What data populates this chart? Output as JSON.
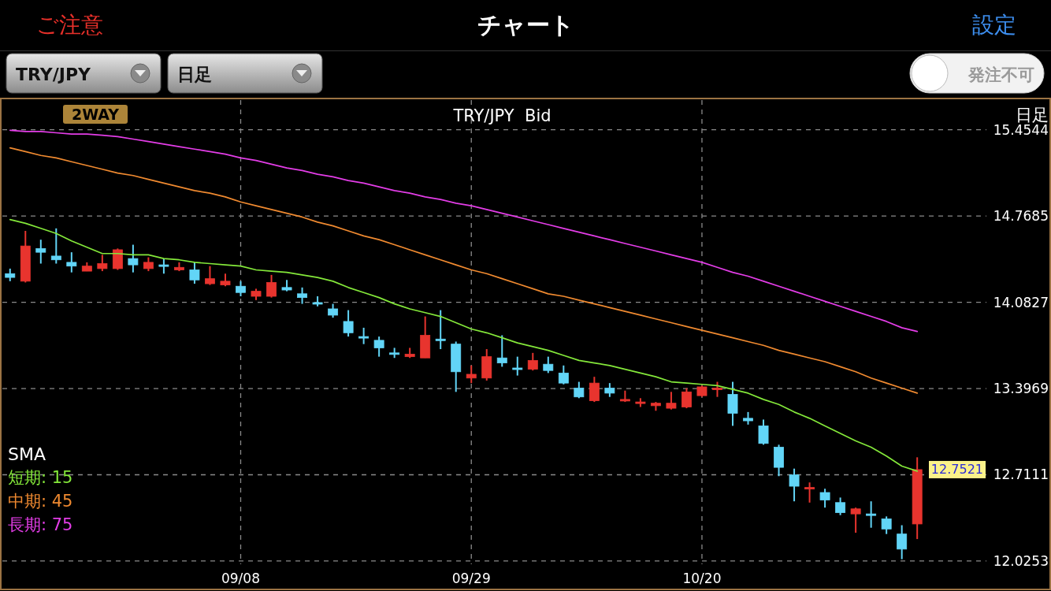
{
  "chart_data": {
    "type": "candlestick",
    "title": "TRY/JPY  Bid",
    "legend_title": "SMA",
    "categories": [
      null,
      null,
      null,
      null,
      null,
      null,
      null,
      null,
      null,
      null,
      null,
      null,
      null,
      null,
      null,
      "09/08",
      null,
      null,
      null,
      null,
      null,
      null,
      null,
      null,
      null,
      null,
      null,
      null,
      null,
      null,
      "09/29",
      null,
      null,
      null,
      null,
      null,
      null,
      null,
      null,
      null,
      null,
      null,
      null,
      null,
      null,
      "10/20",
      null,
      null,
      null,
      null,
      null,
      null,
      null,
      null,
      null,
      null,
      null,
      null,
      null,
      null
    ],
    "ohlc": [
      [
        14.31,
        14.35,
        14.25,
        14.28
      ],
      [
        14.25,
        14.65,
        14.24,
        14.53
      ],
      [
        14.51,
        14.58,
        14.39,
        14.48
      ],
      [
        14.45,
        14.67,
        14.39,
        14.42
      ],
      [
        14.4,
        14.48,
        14.32,
        14.37
      ],
      [
        14.33,
        14.4,
        14.33,
        14.37
      ],
      [
        14.35,
        14.46,
        14.33,
        14.39
      ],
      [
        14.35,
        14.51,
        14.34,
        14.5
      ],
      [
        14.43,
        14.54,
        14.32,
        14.38
      ],
      [
        14.35,
        14.44,
        14.33,
        14.4
      ],
      [
        14.38,
        14.43,
        14.31,
        14.37
      ],
      [
        14.34,
        14.4,
        14.33,
        14.36
      ],
      [
        14.34,
        14.4,
        14.23,
        14.26
      ],
      [
        14.23,
        14.37,
        14.22,
        14.27
      ],
      [
        14.22,
        14.31,
        14.21,
        14.25
      ],
      [
        14.21,
        14.25,
        14.13,
        14.16
      ],
      [
        14.13,
        14.19,
        14.1,
        14.17
      ],
      [
        14.13,
        14.3,
        14.12,
        14.24
      ],
      [
        14.2,
        14.26,
        14.17,
        14.18
      ],
      [
        14.15,
        14.2,
        14.07,
        14.12
      ],
      [
        14.08,
        14.13,
        14.05,
        14.07
      ],
      [
        14.03,
        14.07,
        13.96,
        13.98
      ],
      [
        13.93,
        14.02,
        13.81,
        13.84
      ],
      [
        13.81,
        13.88,
        13.75,
        13.8
      ],
      [
        13.78,
        13.81,
        13.65,
        13.72
      ],
      [
        13.68,
        13.72,
        13.64,
        13.67
      ],
      [
        13.65,
        13.72,
        13.64,
        13.67
      ],
      [
        13.64,
        13.97,
        13.64,
        13.82
      ],
      [
        13.79,
        14.02,
        13.71,
        13.78
      ],
      [
        13.75,
        13.77,
        13.37,
        13.53
      ],
      [
        13.48,
        13.58,
        13.44,
        13.51
      ],
      [
        13.48,
        13.71,
        13.46,
        13.65
      ],
      [
        13.64,
        13.82,
        13.57,
        13.6
      ],
      [
        13.56,
        13.65,
        13.5,
        13.55
      ],
      [
        13.55,
        13.68,
        13.54,
        13.62
      ],
      [
        13.59,
        13.65,
        13.52,
        13.54
      ],
      [
        13.52,
        13.58,
        13.43,
        13.44
      ],
      [
        13.4,
        13.45,
        13.32,
        13.33
      ],
      [
        13.3,
        13.49,
        13.29,
        13.44
      ],
      [
        13.4,
        13.44,
        13.33,
        13.36
      ],
      [
        13.3,
        13.38,
        13.29,
        13.31
      ],
      [
        13.28,
        13.32,
        13.25,
        13.29
      ],
      [
        13.26,
        13.29,
        13.22,
        13.28
      ],
      [
        13.24,
        13.37,
        13.23,
        13.28
      ],
      [
        13.25,
        13.4,
        13.24,
        13.37
      ],
      [
        13.34,
        13.42,
        13.33,
        13.41
      ],
      [
        13.39,
        13.45,
        13.33,
        13.4
      ],
      [
        13.35,
        13.45,
        13.1,
        13.2
      ],
      [
        13.16,
        13.21,
        13.11,
        13.14
      ],
      [
        13.1,
        13.15,
        12.95,
        12.96
      ],
      [
        12.93,
        12.95,
        12.7,
        12.77
      ],
      [
        12.71,
        12.76,
        12.5,
        12.62
      ],
      [
        12.6,
        12.65,
        12.49,
        12.61
      ],
      [
        12.57,
        12.6,
        12.45,
        12.51
      ],
      [
        12.49,
        12.53,
        12.39,
        12.41
      ],
      [
        12.4,
        12.45,
        12.25,
        12.44
      ],
      [
        12.4,
        12.5,
        12.29,
        12.39
      ],
      [
        12.36,
        12.38,
        12.24,
        12.28
      ],
      [
        12.24,
        12.31,
        12.04,
        12.12
      ],
      [
        12.32,
        12.85,
        12.2,
        12.7521
      ]
    ],
    "colors": [
      "#62d5f7",
      "#e8342e",
      "#62d5f7",
      "#62d5f7",
      "#62d5f7",
      "#e8342e",
      "#e8342e",
      "#e8342e",
      "#62d5f7",
      "#e8342e",
      "#62d5f7",
      "#e8342e",
      "#62d5f7",
      "#e8342e",
      "#e8342e",
      "#62d5f7",
      "#e8342e",
      "#e8342e",
      "#62d5f7",
      "#62d5f7",
      "#62d5f7",
      "#62d5f7",
      "#62d5f7",
      "#62d5f7",
      "#62d5f7",
      "#62d5f7",
      "#e8342e",
      "#e8342e",
      "#62d5f7",
      "#62d5f7",
      "#e8342e",
      "#e8342e",
      "#62d5f7",
      "#62d5f7",
      "#e8342e",
      "#62d5f7",
      "#62d5f7",
      "#62d5f7",
      "#e8342e",
      "#62d5f7",
      "#e8342e",
      "#e8342e",
      "#e8342e",
      "#e8342e",
      "#e8342e",
      "#e8342e",
      "#e8342e",
      "#62d5f7",
      "#62d5f7",
      "#62d5f7",
      "#62d5f7",
      "#62d5f7",
      "#e8342e",
      "#62d5f7",
      "#62d5f7",
      "#e8342e",
      "#62d5f7",
      "#62d5f7",
      "#62d5f7",
      "#e8342e"
    ],
    "series": [
      {
        "name": "短期: 15",
        "type": "line",
        "color": "#84e83a",
        "values": [
          14.74,
          14.71,
          14.67,
          14.63,
          14.57,
          14.52,
          14.47,
          14.47,
          14.46,
          14.46,
          14.43,
          14.42,
          14.4,
          14.39,
          14.38,
          14.37,
          14.34,
          14.33,
          14.32,
          14.3,
          14.28,
          14.25,
          14.2,
          14.16,
          14.12,
          14.07,
          14.03,
          14.0,
          13.97,
          13.92,
          13.87,
          13.84,
          13.8,
          13.76,
          13.73,
          13.7,
          13.66,
          13.62,
          13.6,
          13.58,
          13.55,
          13.52,
          13.49,
          13.45,
          13.44,
          13.43,
          13.42,
          13.39,
          13.36,
          13.31,
          13.27,
          13.21,
          13.16,
          13.1,
          13.04,
          12.98,
          12.93,
          12.86,
          12.78,
          12.74
        ]
      },
      {
        "name": "中期: 45",
        "type": "line",
        "color": "#f08a30",
        "values": [
          15.31,
          15.28,
          15.25,
          15.23,
          15.2,
          15.17,
          15.14,
          15.11,
          15.09,
          15.06,
          15.03,
          15.0,
          14.97,
          14.95,
          14.92,
          14.88,
          14.85,
          14.82,
          14.79,
          14.76,
          14.72,
          14.69,
          14.65,
          14.61,
          14.58,
          14.54,
          14.5,
          14.46,
          14.42,
          14.38,
          14.34,
          14.31,
          14.27,
          14.23,
          14.19,
          14.15,
          14.13,
          14.1,
          14.07,
          14.04,
          14.01,
          13.98,
          13.95,
          13.92,
          13.89,
          13.86,
          13.83,
          13.8,
          13.77,
          13.74,
          13.7,
          13.67,
          13.64,
          13.61,
          13.57,
          13.53,
          13.48,
          13.44,
          13.4,
          13.36
        ]
      },
      {
        "name": "長期: 75",
        "type": "line",
        "color": "#e43de8",
        "values": [
          15.45,
          15.44,
          15.44,
          15.43,
          15.42,
          15.42,
          15.41,
          15.4,
          15.38,
          15.36,
          15.34,
          15.32,
          15.3,
          15.28,
          15.26,
          15.23,
          15.21,
          15.18,
          15.15,
          15.13,
          15.1,
          15.08,
          15.05,
          15.03,
          15.0,
          14.97,
          14.95,
          14.92,
          14.9,
          14.87,
          14.85,
          14.82,
          14.79,
          14.76,
          14.73,
          14.7,
          14.67,
          14.64,
          14.61,
          14.58,
          14.55,
          14.52,
          14.49,
          14.46,
          14.43,
          14.4,
          14.36,
          14.32,
          14.29,
          14.25,
          14.21,
          14.17,
          14.13,
          14.09,
          14.05,
          14.01,
          13.97,
          13.93,
          13.88,
          13.85
        ]
      }
    ],
    "ylim": [
      12.0,
      15.69
    ],
    "yticks": [
      15.4544,
      14.7685,
      14.0827,
      13.3969,
      12.7111,
      12.0253
    ],
    "grid": true,
    "legend": "bottom left",
    "annotations": [
      "ご注意",
      "チャート",
      "設定",
      "TRY/JPY",
      "日足",
      "発注不可",
      "日足",
      "2WAY",
      "12.7521"
    ]
  }
}
